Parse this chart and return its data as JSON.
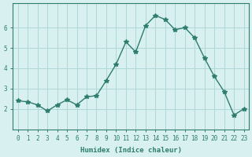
{
  "xlabel": "Humidex (Indice chaleur)",
  "ylabel": "",
  "x_values": [
    0,
    1,
    2,
    3,
    4,
    5,
    6,
    7,
    8,
    9,
    10,
    11,
    12,
    13,
    14,
    15,
    16,
    17,
    18,
    19,
    20,
    21,
    22,
    23
  ],
  "y_values": [
    2.4,
    2.35,
    2.2,
    1.9,
    2.2,
    2.45,
    2.2,
    2.6,
    2.65,
    3.4,
    4.2,
    5.3,
    4.8,
    6.1,
    6.6,
    6.4,
    5.9,
    6.0,
    5.5,
    4.5,
    3.6,
    2.85,
    1.7,
    2.0
  ],
  "line_color": "#2e7d6e",
  "marker": "*",
  "marker_size": 4,
  "bg_color": "#d8f0ef",
  "grid_color": "#b0d8d8",
  "axis_color": "#2e7d6e",
  "tick_label_color": "#2e7d6e",
  "xlabel_color": "#2e7d6e",
  "ylim": [
    1.0,
    7.2
  ],
  "yticks": [
    2,
    3,
    4,
    5,
    6
  ],
  "xlim": [
    -0.5,
    23.5
  ],
  "title_fontsize": 7,
  "axis_fontsize": 6.5,
  "tick_fontsize": 5.5
}
